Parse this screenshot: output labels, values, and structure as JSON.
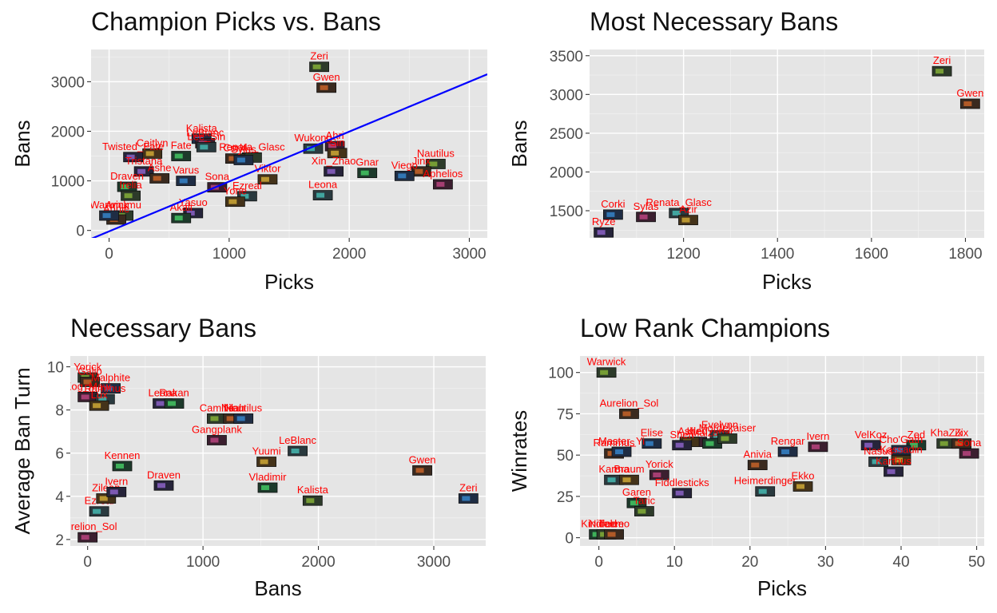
{
  "chart_data": [
    {
      "type": "scatter",
      "title": "Champion Picks vs. Bans",
      "xlabel": "Picks",
      "ylabel": "Bans",
      "xlim": [
        -150,
        3150
      ],
      "ylim": [
        -150,
        3650
      ],
      "xticks": [
        0,
        1000,
        2000,
        3000
      ],
      "yticks": [
        0,
        1000,
        2000,
        3000
      ],
      "grid": true,
      "trend_line": {
        "color": "#0000ff",
        "x": [
          -150,
          3150
        ],
        "y": [
          -170,
          3150
        ]
      },
      "points": [
        {
          "label": "Zeri",
          "x": 1750,
          "y": 3300
        },
        {
          "label": "Gwen",
          "x": 1810,
          "y": 2880
        },
        {
          "label": "Kalista",
          "x": 770,
          "y": 1850
        },
        {
          "label": "LeBlanc",
          "x": 800,
          "y": 1760
        },
        {
          "label": "Lee_Sin",
          "x": 810,
          "y": 1680
        },
        {
          "label": "Caitlyn",
          "x": 360,
          "y": 1550
        },
        {
          "label": "Twisted_Fate",
          "x": 200,
          "y": 1480
        },
        {
          "label": "Fate",
          "x": 600,
          "y": 1500
        },
        {
          "label": "Renata_Glasc",
          "x": 1190,
          "y": 1470
        },
        {
          "label": "Corki",
          "x": 1050,
          "y": 1450
        },
        {
          "label": "Sylas",
          "x": 1120,
          "y": 1420
        },
        {
          "label": "Ahri",
          "x": 1880,
          "y": 1700
        },
        {
          "label": "Wukong",
          "x": 1700,
          "y": 1650
        },
        {
          "label": "Sin",
          "x": 1900,
          "y": 1560
        },
        {
          "label": "Xin_Zhao",
          "x": 1870,
          "y": 1190
        },
        {
          "label": "Gnar",
          "x": 2150,
          "y": 1160
        },
        {
          "label": "Nautilus",
          "x": 2720,
          "y": 1340
        },
        {
          "label": "Jinx",
          "x": 2600,
          "y": 1190
        },
        {
          "label": "Viego",
          "x": 2460,
          "y": 1100
        },
        {
          "label": "Aphelios",
          "x": 2780,
          "y": 930
        },
        {
          "label": "Leona",
          "x": 1780,
          "y": 710
        },
        {
          "label": "Viktor",
          "x": 1320,
          "y": 1030
        },
        {
          "label": "Tristana",
          "x": 290,
          "y": 1190
        },
        {
          "label": "Draven",
          "x": 150,
          "y": 880
        },
        {
          "label": "Irelia",
          "x": 180,
          "y": 700
        },
        {
          "label": "Ashe",
          "x": 420,
          "y": 1050
        },
        {
          "label": "Varus",
          "x": 640,
          "y": 1000
        },
        {
          "label": "Sona",
          "x": 900,
          "y": 870
        },
        {
          "label": "Ezreal",
          "x": 1150,
          "y": 690
        },
        {
          "label": "Yone",
          "x": 1050,
          "y": 580
        },
        {
          "label": "Yasuo",
          "x": 700,
          "y": 350
        },
        {
          "label": "Akali",
          "x": 600,
          "y": 250
        },
        {
          "label": "Amumu",
          "x": 120,
          "y": 300
        },
        {
          "label": "Annie",
          "x": 60,
          "y": 220
        },
        {
          "label": "Warwick",
          "x": 0,
          "y": 300
        }
      ]
    },
    {
      "type": "scatter",
      "title": "Most Necessary Bans",
      "xlabel": "Picks",
      "ylabel": "Bans",
      "xlim": [
        1000,
        1840
      ],
      "ylim": [
        1150,
        3580
      ],
      "xticks": [
        1200,
        1400,
        1600,
        1800
      ],
      "yticks": [
        1500,
        2000,
        2500,
        3000,
        3500
      ],
      "grid": true,
      "points": [
        {
          "label": "Zeri",
          "x": 1750,
          "y": 3300
        },
        {
          "label": "Gwen",
          "x": 1810,
          "y": 2880
        },
        {
          "label": "Corki",
          "x": 1050,
          "y": 1450
        },
        {
          "label": "Sylas",
          "x": 1120,
          "y": 1420
        },
        {
          "label": "Renata_Glasc",
          "x": 1190,
          "y": 1470
        },
        {
          "label": "Azir",
          "x": 1210,
          "y": 1380
        },
        {
          "label": "Ryze",
          "x": 1030,
          "y": 1220
        }
      ]
    },
    {
      "type": "scatter",
      "title": "Necessary Bans",
      "xlabel": "Bans",
      "ylabel": "Average Ban Turn",
      "xlim": [
        -150,
        3450
      ],
      "ylim": [
        1.7,
        10.5
      ],
      "xticks": [
        0,
        1000,
        2000,
        3000
      ],
      "yticks": [
        2,
        4,
        6,
        8,
        10
      ],
      "grid": true,
      "points": [
        {
          "label": "Yorick",
          "x": 0,
          "y": 9.5
        },
        {
          "label": "Galio",
          "x": 20,
          "y": 9.3
        },
        {
          "label": "Malphite",
          "x": 200,
          "y": 9.0
        },
        {
          "label": "Kog_Maw",
          "x": 0,
          "y": 8.6
        },
        {
          "label": "Rammus",
          "x": 150,
          "y": 8.5
        },
        {
          "label": "Lux",
          "x": 100,
          "y": 8.2
        },
        {
          "label": "Leona",
          "x": 650,
          "y": 8.3
        },
        {
          "label": "Rakan",
          "x": 750,
          "y": 8.3
        },
        {
          "label": "Camille",
          "x": 1120,
          "y": 7.6
        },
        {
          "label": "Nilah",
          "x": 1260,
          "y": 7.6
        },
        {
          "label": "Nautilus",
          "x": 1350,
          "y": 7.6
        },
        {
          "label": "Gangplank",
          "x": 1120,
          "y": 6.6
        },
        {
          "label": "LeBlanc",
          "x": 1820,
          "y": 6.1
        },
        {
          "label": "Yuumi",
          "x": 1550,
          "y": 5.6
        },
        {
          "label": "Draven",
          "x": 660,
          "y": 4.5
        },
        {
          "label": "Vladimir",
          "x": 1560,
          "y": 4.4
        },
        {
          "label": "Kalista",
          "x": 1950,
          "y": 3.8
        },
        {
          "label": "Gwen",
          "x": 2900,
          "y": 5.2
        },
        {
          "label": "Zeri",
          "x": 3300,
          "y": 3.9
        },
        {
          "label": "Aurelion_Sol",
          "x": 0,
          "y": 2.1
        },
        {
          "label": "Ezreal",
          "x": 100,
          "y": 3.3
        },
        {
          "label": "Zilean",
          "x": 160,
          "y": 3.9
        },
        {
          "label": "Ivern",
          "x": 250,
          "y": 4.2
        },
        {
          "label": "Kennen",
          "x": 300,
          "y": 5.4
        }
      ]
    },
    {
      "type": "scatter",
      "title": "Low Rank Champions",
      "xlabel": "Picks",
      "ylabel": "Winrates",
      "xlim": [
        -2.5,
        51
      ],
      "ylim": [
        -5,
        110
      ],
      "xticks": [
        0,
        10,
        20,
        30,
        40,
        50
      ],
      "yticks": [
        0,
        25,
        50,
        75,
        100
      ],
      "grid": true,
      "points": [
        {
          "label": "Warwick",
          "x": 1,
          "y": 100
        },
        {
          "label": "Aurelion_Sol",
          "x": 4,
          "y": 75
        },
        {
          "label": "Elise",
          "x": 7,
          "y": 57
        },
        {
          "label": "Kled",
          "x": 13,
          "y": 58
        },
        {
          "label": "Evelynn",
          "x": 16,
          "y": 62
        },
        {
          "label": "Ashe",
          "x": 12,
          "y": 58
        },
        {
          "label": "Shen",
          "x": 11,
          "y": 56
        },
        {
          "label": "Malzahar",
          "x": 15,
          "y": 57
        },
        {
          "label": "Mordekaiser",
          "x": 17,
          "y": 60
        },
        {
          "label": "Rammus",
          "x": 2,
          "y": 51
        },
        {
          "label": "Master_Yi",
          "x": 3,
          "y": 52
        },
        {
          "label": "Yorick",
          "x": 8,
          "y": 38
        },
        {
          "label": "Karma",
          "x": 2,
          "y": 35
        },
        {
          "label": "Braum",
          "x": 4,
          "y": 35
        },
        {
          "label": "Fiddlesticks",
          "x": 11,
          "y": 27
        },
        {
          "label": "Garen",
          "x": 5,
          "y": 21
        },
        {
          "label": "Taric",
          "x": 6,
          "y": 16
        },
        {
          "label": "Anivia",
          "x": 21,
          "y": 44
        },
        {
          "label": "Rengar",
          "x": 25,
          "y": 52
        },
        {
          "label": "Ivern",
          "x": 29,
          "y": 55
        },
        {
          "label": "Heimerdinger",
          "x": 22,
          "y": 28
        },
        {
          "label": "Ekko",
          "x": 27,
          "y": 31
        },
        {
          "label": "VelKoz",
          "x": 36,
          "y": 56
        },
        {
          "label": "Zed",
          "x": 42,
          "y": 56
        },
        {
          "label": "KhaZix",
          "x": 46,
          "y": 57
        },
        {
          "label": "Zix",
          "x": 48,
          "y": 57
        },
        {
          "label": "Cho'Gath",
          "x": 40,
          "y": 53
        },
        {
          "label": "Sona",
          "x": 49,
          "y": 51
        },
        {
          "label": "Nasus",
          "x": 37,
          "y": 46
        },
        {
          "label": "Kassadin",
          "x": 40,
          "y": 47
        },
        {
          "label": "Karthus",
          "x": 39,
          "y": 40
        },
        {
          "label": "Kindred",
          "x": 0,
          "y": 2
        },
        {
          "label": "Nidalee",
          "x": 1,
          "y": 2
        },
        {
          "label": "Teemo",
          "x": 2,
          "y": 2
        }
      ]
    }
  ]
}
